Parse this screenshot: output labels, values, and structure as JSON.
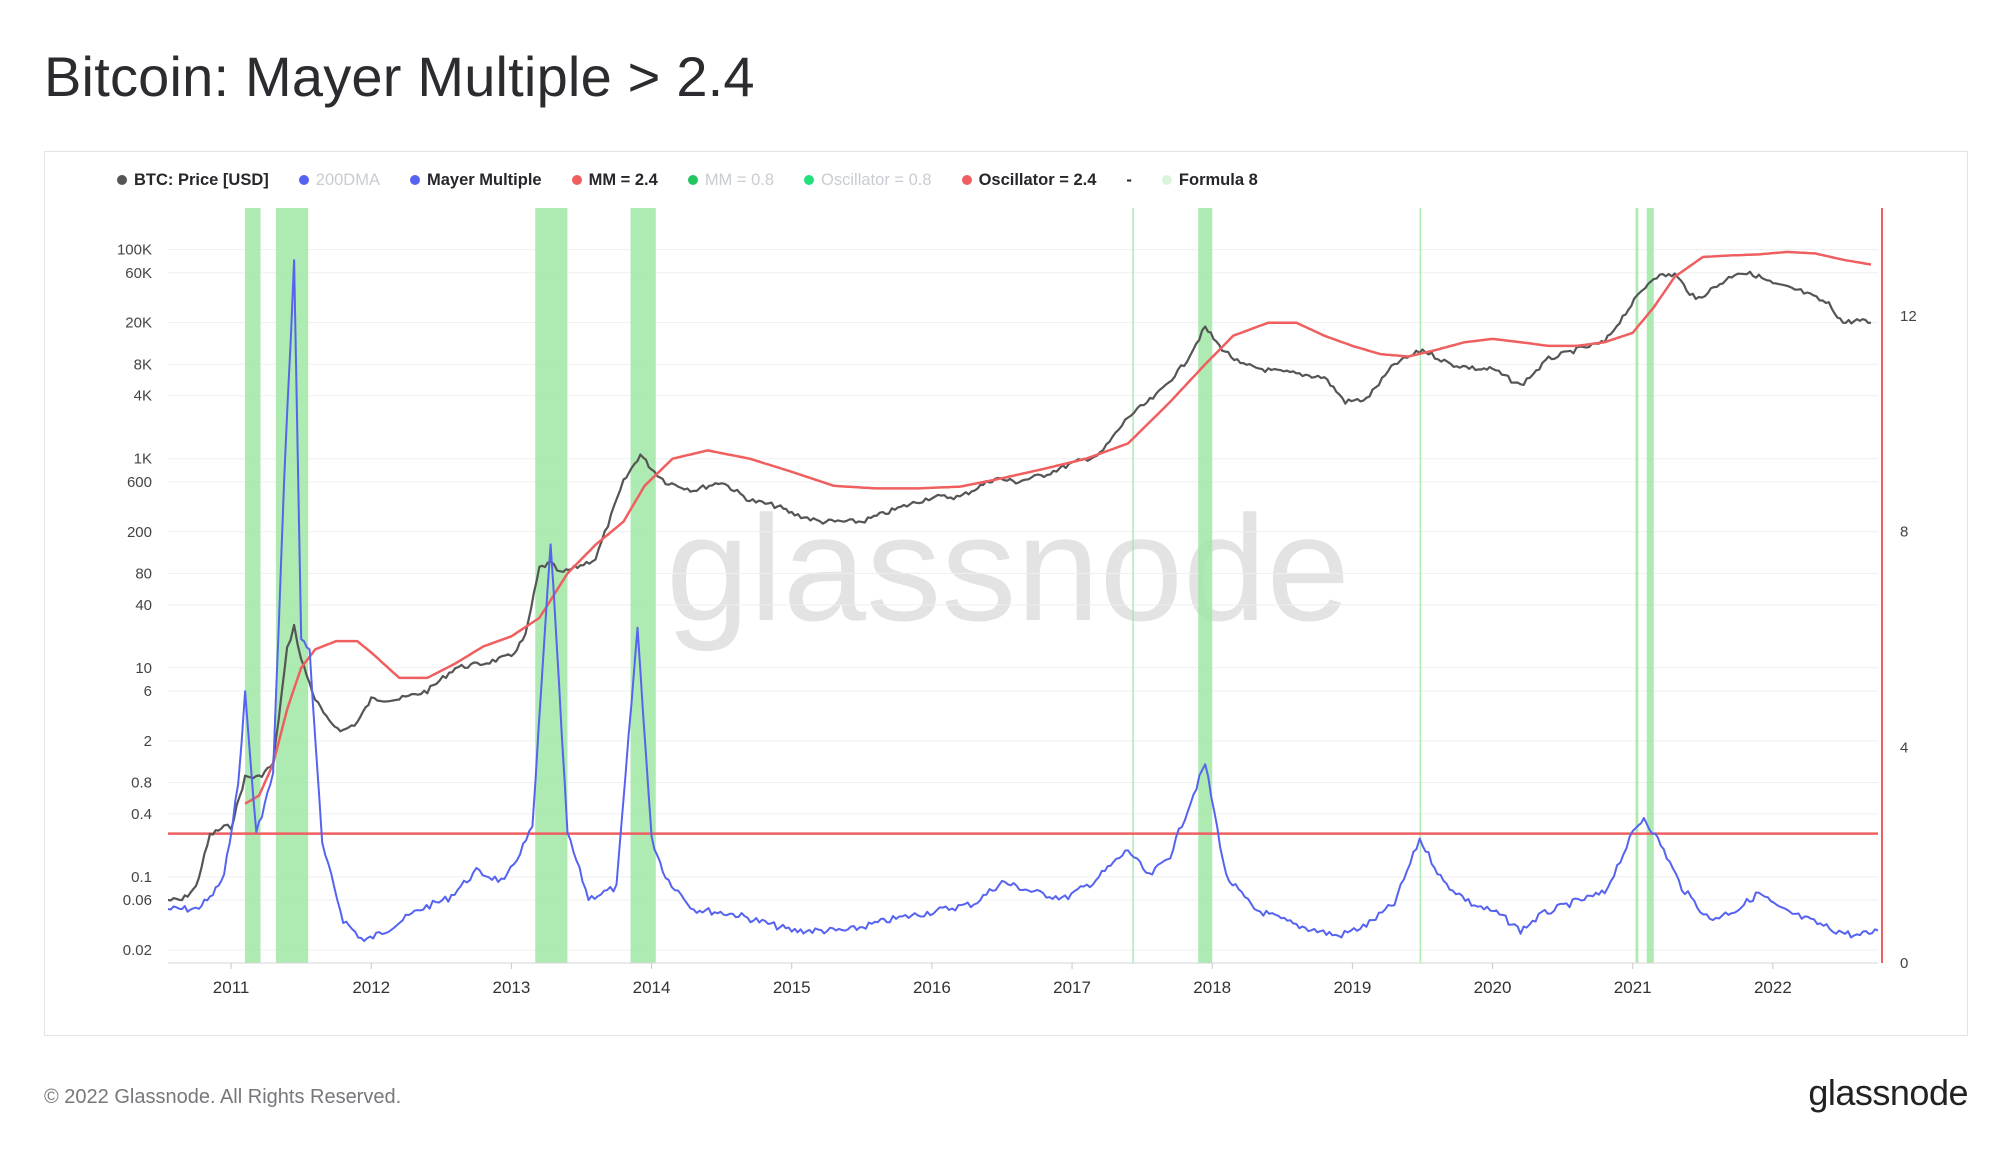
{
  "title": "Bitcoin: Mayer Multiple > 2.4",
  "footer": "© 2022 Glassnode. All Rights Reserved.",
  "brand": "glassnode",
  "watermark": "glassnode",
  "colors": {
    "price": "#555555",
    "mayer_multiple": "#5663f0",
    "mm_upper": "#ef5f5f",
    "signal_band": "#9fe8a4",
    "muted": "#c9ccd3",
    "axis_right": "#ef5f5f"
  },
  "chart_data": {
    "type": "line",
    "legend": [
      {
        "label": "BTC: Price [USD]",
        "color": "#555555",
        "muted": false
      },
      {
        "label": "200DMA",
        "color": "#5663f0",
        "muted": true
      },
      {
        "label": "Mayer Multiple",
        "color": "#5663f0",
        "muted": false
      },
      {
        "label": "MM = 2.4",
        "color": "#ef5f5f",
        "muted": false
      },
      {
        "label": "MM = 0.8",
        "color": "#22c55e",
        "muted": true
      },
      {
        "label": "Oscillator = 0.8",
        "color": "#22e07a",
        "muted": true
      },
      {
        "label": "Oscillator = 2.4",
        "color": "#ef5f5f",
        "muted": false
      },
      {
        "label": "-",
        "dash": true
      },
      {
        "label": "Formula 8",
        "color": "#d9f5dc",
        "muted": false
      }
    ],
    "x_ticks": [
      "2011",
      "2012",
      "2013",
      "2014",
      "2015",
      "2016",
      "2017",
      "2018",
      "2019",
      "2020",
      "2021",
      "2022"
    ],
    "xlim": [
      2010.55,
      2022.75
    ],
    "y_left": {
      "scale": "log",
      "ylim": [
        0.015,
        250000
      ],
      "ticks": [
        {
          "value": 0.02,
          "label": "0.02"
        },
        {
          "value": 0.06,
          "label": "0.06"
        },
        {
          "value": 0.1,
          "label": "0.1"
        },
        {
          "value": 0.4,
          "label": "0.4"
        },
        {
          "value": 0.8,
          "label": "0.8"
        },
        {
          "value": 2,
          "label": "2"
        },
        {
          "value": 6,
          "label": "6"
        },
        {
          "value": 10,
          "label": "10"
        },
        {
          "value": 40,
          "label": "40"
        },
        {
          "value": 80,
          "label": "80"
        },
        {
          "value": 200,
          "label": "200"
        },
        {
          "value": 600,
          "label": "600"
        },
        {
          "value": 1000,
          "label": "1K"
        },
        {
          "value": 4000,
          "label": "4K"
        },
        {
          "value": 8000,
          "label": "8K"
        },
        {
          "value": 20000,
          "label": "20K"
        },
        {
          "value": 60000,
          "label": "60K"
        },
        {
          "value": 100000,
          "label": "100K"
        }
      ]
    },
    "y_right": {
      "scale": "linear",
      "ylim": [
        0,
        14
      ],
      "ticks": [
        {
          "value": 0,
          "label": "0"
        },
        {
          "value": 4,
          "label": "4"
        },
        {
          "value": 8,
          "label": "8"
        },
        {
          "value": 12,
          "label": "12"
        }
      ]
    },
    "mm_threshold": 2.4,
    "signal_periods": [
      [
        2011.1,
        2011.21
      ],
      [
        2011.32,
        2011.55
      ],
      [
        2013.17,
        2013.4
      ],
      [
        2013.85,
        2014.03
      ],
      [
        2017.43,
        2017.44
      ],
      [
        2017.9,
        2018.0
      ],
      [
        2019.48,
        2019.49
      ],
      [
        2021.02,
        2021.04
      ],
      [
        2021.1,
        2021.15
      ]
    ],
    "series": [
      {
        "name": "BTC: Price [USD]",
        "axis": "left",
        "x": [
          2010.55,
          2010.65,
          2010.75,
          2010.85,
          2010.95,
          2011.0,
          2011.1,
          2011.2,
          2011.3,
          2011.4,
          2011.45,
          2011.5,
          2011.6,
          2011.7,
          2011.8,
          2011.9,
          2012.0,
          2012.2,
          2012.4,
          2012.6,
          2012.8,
          2013.0,
          2013.1,
          2013.2,
          2013.28,
          2013.35,
          2013.45,
          2013.6,
          2013.8,
          2013.92,
          2014.0,
          2014.1,
          2014.3,
          2014.5,
          2014.7,
          2014.9,
          2015.0,
          2015.2,
          2015.5,
          2015.8,
          2016.0,
          2016.2,
          2016.45,
          2016.6,
          2016.8,
          2017.0,
          2017.2,
          2017.4,
          2017.6,
          2017.8,
          2017.95,
          2018.05,
          2018.2,
          2018.4,
          2018.6,
          2018.8,
          2018.95,
          2019.1,
          2019.3,
          2019.5,
          2019.7,
          2019.9,
          2020.0,
          2020.2,
          2020.4,
          2020.6,
          2020.8,
          2020.95,
          2021.05,
          2021.15,
          2021.3,
          2021.45,
          2021.6,
          2021.75,
          2021.88,
          2022.0,
          2022.2,
          2022.4,
          2022.5,
          2022.6,
          2022.7
        ],
        "values": [
          0.06,
          0.06,
          0.08,
          0.25,
          0.3,
          0.3,
          0.9,
          0.9,
          1.2,
          15,
          25,
          12,
          5,
          3,
          2.5,
          3,
          5,
          5,
          6,
          10,
          11,
          13,
          20,
          90,
          100,
          80,
          90,
          110,
          600,
          1100,
          800,
          600,
          500,
          600,
          400,
          350,
          300,
          250,
          250,
          350,
          430,
          430,
          650,
          600,
          700,
          900,
          1100,
          2500,
          4000,
          8000,
          18000,
          12000,
          8000,
          7000,
          6500,
          6000,
          3500,
          3700,
          8000,
          11000,
          8000,
          7200,
          7200,
          5000,
          9000,
          11000,
          13000,
          25000,
          38000,
          55000,
          58000,
          33000,
          45000,
          61000,
          57000,
          47000,
          40000,
          30000,
          20000,
          21000,
          20000
        ]
      },
      {
        "name": "Oscillator = 2.4",
        "axis": "left",
        "x": [
          2011.1,
          2011.2,
          2011.3,
          2011.4,
          2011.5,
          2011.6,
          2011.75,
          2011.9,
          2012.0,
          2012.2,
          2012.4,
          2012.6,
          2012.8,
          2013.0,
          2013.2,
          2013.4,
          2013.6,
          2013.8,
          2013.95,
          2014.15,
          2014.4,
          2014.7,
          2015.0,
          2015.3,
          2015.6,
          2015.9,
          2016.2,
          2016.5,
          2016.8,
          2017.1,
          2017.4,
          2017.7,
          2017.95,
          2018.15,
          2018.4,
          2018.6,
          2018.8,
          2019.0,
          2019.2,
          2019.4,
          2019.6,
          2019.8,
          2020.0,
          2020.2,
          2020.4,
          2020.6,
          2020.8,
          2021.0,
          2021.15,
          2021.3,
          2021.5,
          2021.7,
          2021.9,
          2022.1,
          2022.3,
          2022.5,
          2022.7
        ],
        "values": [
          0.5,
          0.6,
          1.2,
          4,
          10,
          15,
          18,
          18,
          14,
          8,
          8,
          11,
          16,
          20,
          30,
          80,
          150,
          250,
          550,
          1000,
          1200,
          1000,
          750,
          550,
          520,
          520,
          540,
          650,
          800,
          1000,
          1400,
          3500,
          8000,
          15000,
          20000,
          20000,
          15000,
          12000,
          10000,
          9500,
          11000,
          13000,
          14000,
          13000,
          12000,
          12000,
          13000,
          16000,
          28000,
          55000,
          85000,
          88000,
          90000,
          95000,
          92000,
          80000,
          72000
        ]
      },
      {
        "name": "Mayer Multiple",
        "axis": "right",
        "x": [
          2010.55,
          2010.65,
          2010.75,
          2010.85,
          2010.95,
          2011.05,
          2011.1,
          2011.18,
          2011.3,
          2011.38,
          2011.45,
          2011.5,
          2011.56,
          2011.65,
          2011.8,
          2011.95,
          2012.1,
          2012.35,
          2012.55,
          2012.75,
          2012.95,
          2013.15,
          2013.28,
          2013.4,
          2013.55,
          2013.75,
          2013.9,
          2014.0,
          2014.1,
          2014.3,
          2014.6,
          2015.0,
          2015.4,
          2015.7,
          2015.9,
          2016.1,
          2016.3,
          2016.5,
          2016.75,
          2016.95,
          2017.15,
          2017.4,
          2017.55,
          2017.7,
          2017.95,
          2018.1,
          2018.3,
          2018.6,
          2018.9,
          2019.1,
          2019.3,
          2019.48,
          2019.65,
          2019.85,
          2020.05,
          2020.2,
          2020.35,
          2020.55,
          2020.8,
          2021.0,
          2021.08,
          2021.2,
          2021.35,
          2021.55,
          2021.75,
          2021.9,
          2022.05,
          2022.25,
          2022.45,
          2022.6,
          2022.75
        ],
        "values": [
          1.0,
          1.0,
          1.0,
          1.2,
          1.6,
          3.3,
          5.0,
          2.4,
          3.5,
          9.0,
          13.0,
          6.0,
          5.8,
          2.2,
          0.8,
          0.4,
          0.6,
          1.0,
          1.2,
          1.7,
          1.5,
          2.5,
          7.8,
          2.4,
          1.2,
          1.4,
          6.2,
          2.3,
          1.6,
          1.0,
          0.9,
          0.6,
          0.6,
          0.8,
          0.9,
          1.0,
          1.1,
          1.5,
          1.3,
          1.2,
          1.5,
          2.1,
          1.6,
          2.0,
          3.7,
          1.6,
          1.0,
          0.7,
          0.5,
          0.7,
          1.1,
          2.3,
          1.5,
          1.1,
          0.9,
          0.6,
          0.9,
          1.1,
          1.3,
          2.4,
          2.7,
          2.2,
          1.4,
          0.8,
          1.0,
          1.3,
          1.0,
          0.8,
          0.6,
          0.5,
          0.6
        ]
      }
    ]
  }
}
